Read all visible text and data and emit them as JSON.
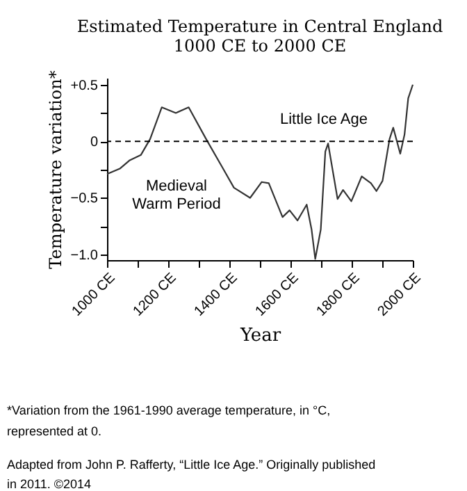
{
  "chart_data": {
    "type": "line",
    "title": "Estimated Temperature in Central England",
    "subtitle": "1000 CE to 2000 CE",
    "xlabel": "Year",
    "ylabel": "Temperature variation*",
    "x": [
      1000,
      1043,
      1073,
      1111,
      1141,
      1179,
      1225,
      1267,
      1324,
      1377,
      1415,
      1468,
      1506,
      1529,
      1574,
      1597,
      1623,
      1653,
      1669,
      1681,
      1699,
      1714,
      1723,
      1754,
      1772,
      1799,
      1833,
      1863,
      1881,
      1901,
      1924,
      1936,
      1959,
      1973,
      1985,
      2000
    ],
    "series": [
      {
        "color": "#333333",
        "values": [
          -0.29,
          -0.24,
          -0.17,
          -0.12,
          0.02,
          0.3,
          0.25,
          0.3,
          0.02,
          -0.23,
          -0.41,
          -0.5,
          -0.36,
          -0.37,
          -0.67,
          -0.61,
          -0.7,
          -0.56,
          -0.78,
          -1.04,
          -0.78,
          -0.09,
          -0.02,
          -0.51,
          -0.43,
          -0.53,
          -0.31,
          -0.37,
          -0.44,
          -0.35,
          0.02,
          0.12,
          -0.11,
          0.06,
          0.38,
          0.5
        ]
      }
    ],
    "xlim": [
      1000,
      2000
    ],
    "xticks": [
      {
        "value": 1000,
        "label": "1000 CE"
      },
      {
        "value": 1100,
        "label": null
      },
      {
        "value": 1200,
        "label": "1200 CE"
      },
      {
        "value": 1300,
        "label": null
      },
      {
        "value": 1400,
        "label": "1400 CE"
      },
      {
        "value": 1500,
        "label": null
      },
      {
        "value": 1600,
        "label": "1600 CE"
      },
      {
        "value": 1700,
        "label": null
      },
      {
        "value": 1800,
        "label": "1800 CE"
      },
      {
        "value": 1900,
        "label": null
      },
      {
        "value": 2000,
        "label": "2000 CE"
      }
    ],
    "ylim": [
      -1.05,
      0.56
    ],
    "yticks": [
      {
        "value": -1.0,
        "label": "−1.0"
      },
      {
        "value": -0.75,
        "label": null
      },
      {
        "value": -0.5,
        "label": "−0.5"
      },
      {
        "value": -0.25,
        "label": null
      },
      {
        "value": 0,
        "label": "0"
      },
      {
        "value": 0.25,
        "label": null
      },
      {
        "value": 0.5,
        "label": "+0.5"
      }
    ],
    "ref_lines": [
      {
        "axis": "y",
        "value": 0,
        "line_style": "dashed",
        "color": "#000000"
      }
    ],
    "grid": false,
    "marker": "none",
    "line_style": "solid",
    "annotations": [
      "Little Ice Age",
      "Medieval\nWarm Period",
      "*Variation from the 1961-1990 average temperature, in °C,\nrepresented at 0.",
      "Adapted from John P. Rafferty, “Little Ice Age.” Originally published\nin 2011. ©2014"
    ]
  }
}
